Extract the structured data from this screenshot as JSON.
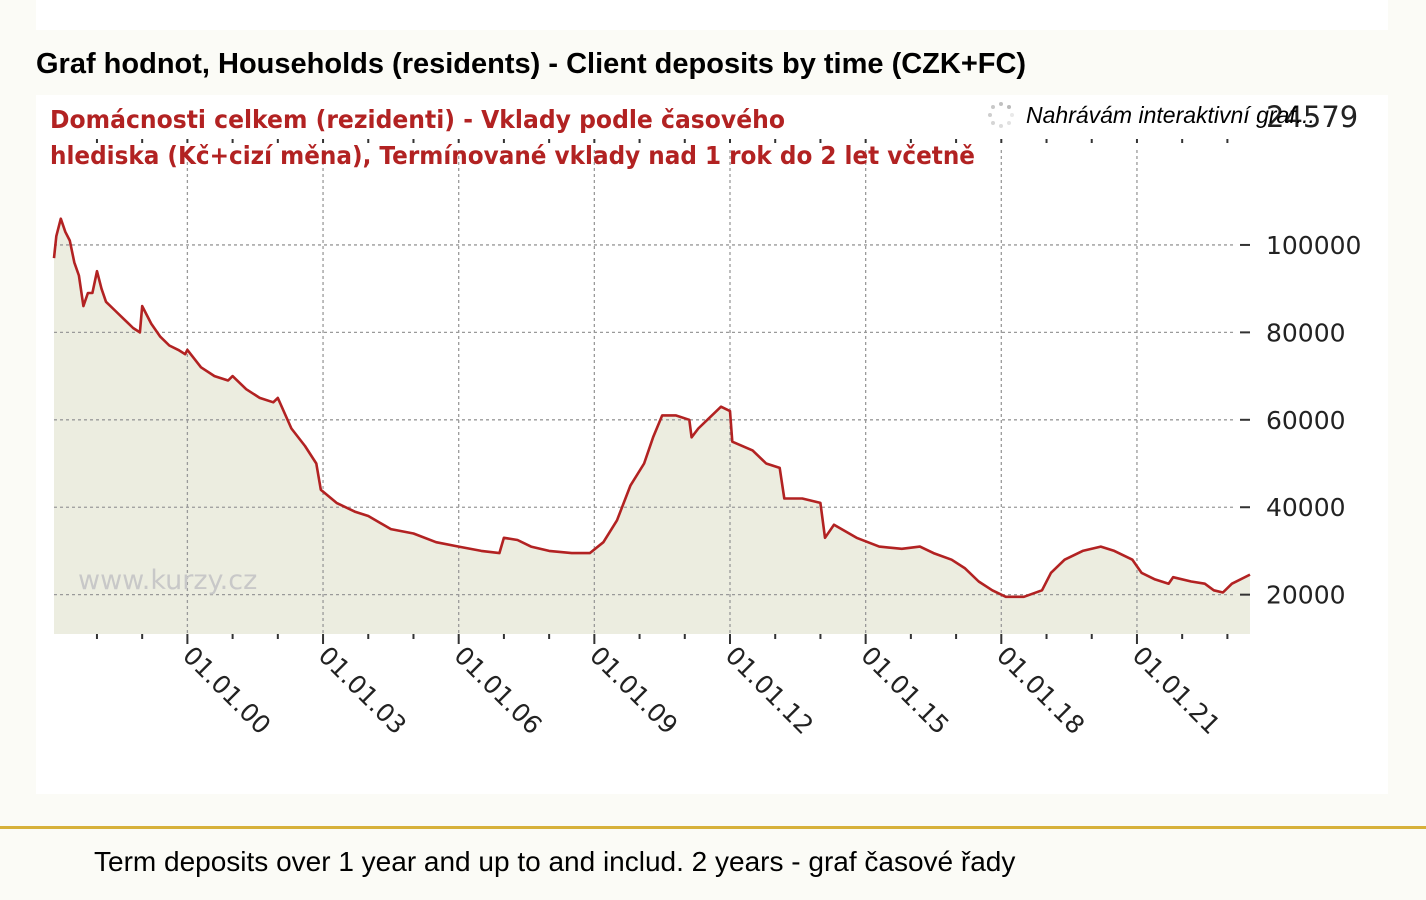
{
  "page": {
    "heading": "Graf hodnot, Households (residents) - Client deposits by time (CZK+FC)",
    "footer_caption": "Term deposits over 1 year and up to and includ. 2 years - graf časové řady",
    "loading_text": "Nahrávám interaktivní graf...",
    "colors": {
      "accent_rule": "#d7b13a",
      "series_line": "#b22222",
      "area_fill": "#ecede0",
      "title_red": "#b22222"
    }
  },
  "chart_data": {
    "type": "area",
    "title_lines": [
      "Domácnosti celkem (rezidenti) - Vklady podle časového",
      "hlediska (Kč+cizí měna), Termínované vklady nad 1 rok do 2 let včetně"
    ],
    "watermark": "www.kurzy.cz",
    "last_value_label": "24579",
    "x_tick_labels": [
      "01.01.00",
      "01.01.03",
      "01.01.06",
      "01.01.09",
      "01.01.12",
      "01.01.15",
      "01.01.18",
      "01.01.21"
    ],
    "x_tick_years": [
      2000,
      2003,
      2006,
      2009,
      2012,
      2015,
      2018,
      2021
    ],
    "y_ticks": [
      20000,
      40000,
      60000,
      80000,
      100000
    ],
    "y_tick_labels": [
      "20000",
      "40000",
      "60000",
      "80000",
      "100000"
    ],
    "xlim": [
      1997.05,
      2023.5
    ],
    "ylim": [
      11000,
      116000
    ],
    "grid": true,
    "series": [
      {
        "points": [
          [
            1997.05,
            97000
          ],
          [
            1997.1,
            102000
          ],
          [
            1997.2,
            106000
          ],
          [
            1997.3,
            103000
          ],
          [
            1997.4,
            101000
          ],
          [
            1997.5,
            96000
          ],
          [
            1997.6,
            93000
          ],
          [
            1997.7,
            86000
          ],
          [
            1997.8,
            89000
          ],
          [
            1997.9,
            89000
          ],
          [
            1998.0,
            94000
          ],
          [
            1998.1,
            90000
          ],
          [
            1998.2,
            87000
          ],
          [
            1998.4,
            85000
          ],
          [
            1998.6,
            83000
          ],
          [
            1998.8,
            81000
          ],
          [
            1998.95,
            80000
          ],
          [
            1999.0,
            86000
          ],
          [
            1999.2,
            82000
          ],
          [
            1999.4,
            79000
          ],
          [
            1999.6,
            77000
          ],
          [
            1999.8,
            76000
          ],
          [
            1999.95,
            75000
          ],
          [
            2000.0,
            76000
          ],
          [
            2000.3,
            72000
          ],
          [
            2000.6,
            70000
          ],
          [
            2000.9,
            69000
          ],
          [
            2001.0,
            70000
          ],
          [
            2001.3,
            67000
          ],
          [
            2001.6,
            65000
          ],
          [
            2001.9,
            64000
          ],
          [
            2002.0,
            65000
          ],
          [
            2002.3,
            58000
          ],
          [
            2002.6,
            54000
          ],
          [
            2002.85,
            50000
          ],
          [
            2002.95,
            44000
          ],
          [
            2003.3,
            41000
          ],
          [
            2003.7,
            39000
          ],
          [
            2004.0,
            38000
          ],
          [
            2004.5,
            35000
          ],
          [
            2005.0,
            34000
          ],
          [
            2005.5,
            32000
          ],
          [
            2006.0,
            31000
          ],
          [
            2006.5,
            30000
          ],
          [
            2006.9,
            29500
          ],
          [
            2007.0,
            33000
          ],
          [
            2007.3,
            32500
          ],
          [
            2007.6,
            31000
          ],
          [
            2008.0,
            30000
          ],
          [
            2008.5,
            29500
          ],
          [
            2008.9,
            29500
          ],
          [
            2009.2,
            32000
          ],
          [
            2009.5,
            37000
          ],
          [
            2009.8,
            45000
          ],
          [
            2010.1,
            50000
          ],
          [
            2010.3,
            56000
          ],
          [
            2010.5,
            61000
          ],
          [
            2010.8,
            61000
          ],
          [
            2011.1,
            60000
          ],
          [
            2011.15,
            56000
          ],
          [
            2011.3,
            58000
          ],
          [
            2011.6,
            61000
          ],
          [
            2011.8,
            63000
          ],
          [
            2012.0,
            62000
          ],
          [
            2012.05,
            55000
          ],
          [
            2012.5,
            53000
          ],
          [
            2012.8,
            50000
          ],
          [
            2013.1,
            49000
          ],
          [
            2013.2,
            42000
          ],
          [
            2013.6,
            42000
          ],
          [
            2014.0,
            41000
          ],
          [
            2014.1,
            33000
          ],
          [
            2014.3,
            36000
          ],
          [
            2014.8,
            33000
          ],
          [
            2015.3,
            31000
          ],
          [
            2015.8,
            30500
          ],
          [
            2016.2,
            31000
          ],
          [
            2016.5,
            29500
          ],
          [
            2016.9,
            28000
          ],
          [
            2017.2,
            26000
          ],
          [
            2017.5,
            23000
          ],
          [
            2017.8,
            21000
          ],
          [
            2018.1,
            19500
          ],
          [
            2018.5,
            19500
          ],
          [
            2018.9,
            21000
          ],
          [
            2019.1,
            25000
          ],
          [
            2019.4,
            28000
          ],
          [
            2019.8,
            30000
          ],
          [
            2020.2,
            31000
          ],
          [
            2020.5,
            30000
          ],
          [
            2020.9,
            28000
          ],
          [
            2021.1,
            25000
          ],
          [
            2021.4,
            23500
          ],
          [
            2021.7,
            22500
          ],
          [
            2021.8,
            24000
          ],
          [
            2022.2,
            23000
          ],
          [
            2022.5,
            22500
          ],
          [
            2022.7,
            21000
          ],
          [
            2022.9,
            20500
          ],
          [
            2023.1,
            22500
          ],
          [
            2023.5,
            24579
          ]
        ]
      }
    ]
  }
}
